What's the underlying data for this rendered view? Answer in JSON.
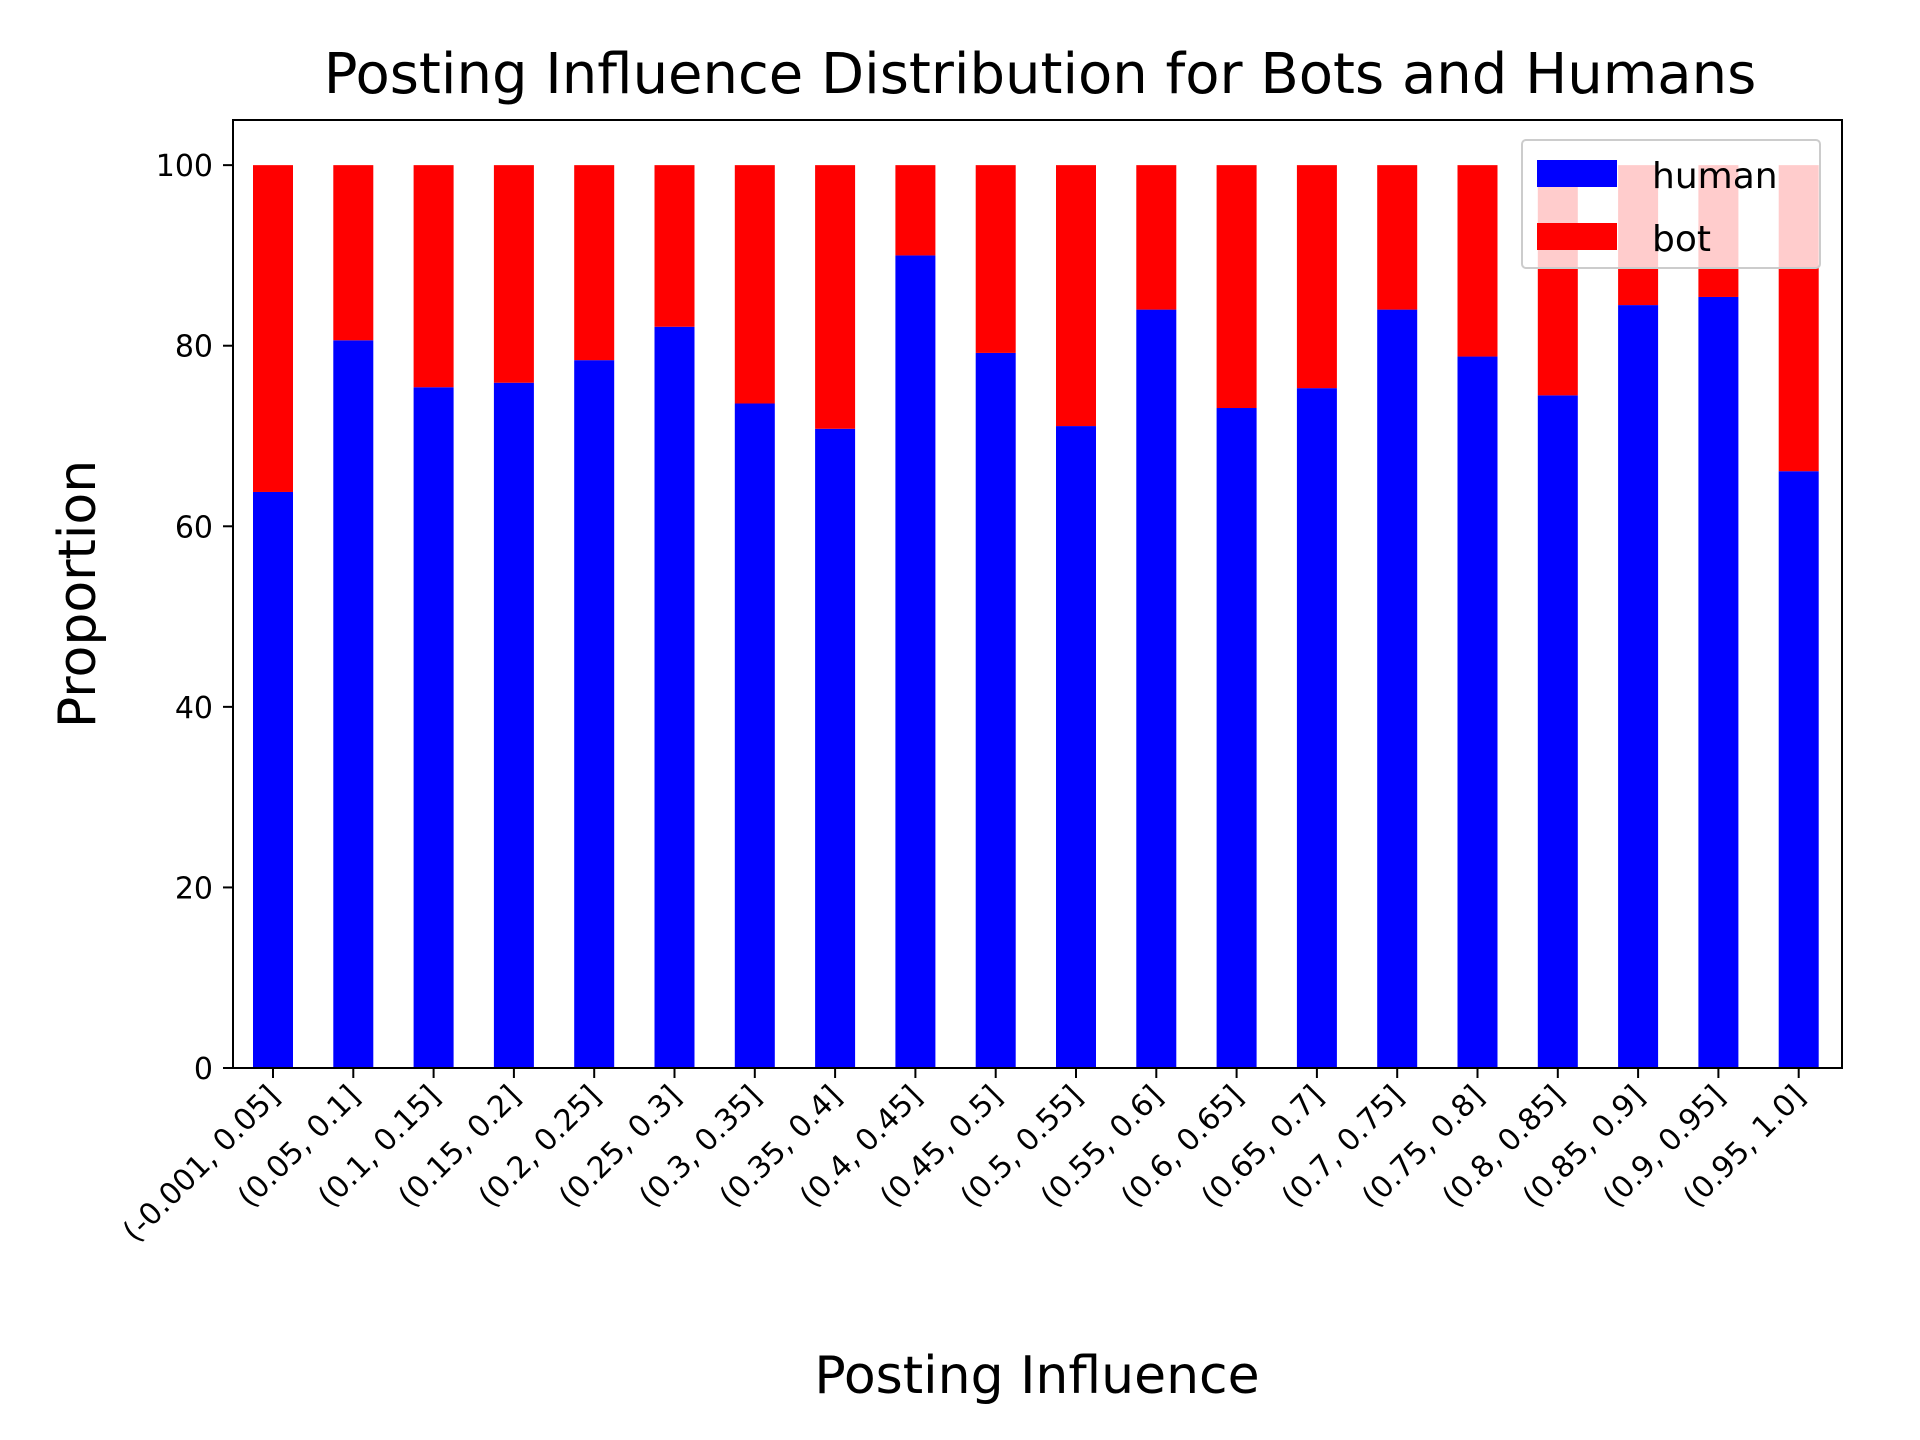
{
  "chart_data": {
    "type": "bar",
    "stacked": true,
    "title": "Posting Influence Distribution for Bots and Humans",
    "xlabel": "Posting Influence",
    "ylabel": "Proportion",
    "ylim": [
      0,
      105
    ],
    "yticks": [
      0,
      20,
      40,
      60,
      80,
      100
    ],
    "categories": [
      "(-0.001, 0.05]",
      "(0.05, 0.1]",
      "(0.1, 0.15]",
      "(0.15, 0.2]",
      "(0.2, 0.25]",
      "(0.25, 0.3]",
      "(0.3, 0.35]",
      "(0.35, 0.4]",
      "(0.4, 0.45]",
      "(0.45, 0.5]",
      "(0.5, 0.55]",
      "(0.55, 0.6]",
      "(0.6, 0.65]",
      "(0.65, 0.7]",
      "(0.7, 0.75]",
      "(0.75, 0.8]",
      "(0.8, 0.85]",
      "(0.85, 0.9]",
      "(0.9, 0.95]",
      "(0.95, 1.0]"
    ],
    "series": [
      {
        "name": "human",
        "color": "#0000ff",
        "values": [
          63.8,
          80.6,
          75.4,
          75.9,
          78.4,
          82.1,
          73.6,
          70.8,
          90.0,
          79.2,
          71.1,
          84.0,
          73.1,
          75.3,
          84.0,
          78.8,
          74.5,
          84.5,
          85.4,
          66.1
        ]
      },
      {
        "name": "bot",
        "color": "#ff0000",
        "values": [
          36.2,
          19.4,
          24.6,
          24.1,
          21.6,
          17.9,
          26.4,
          29.2,
          10.0,
          20.8,
          28.9,
          16.0,
          26.9,
          24.7,
          16.0,
          21.2,
          25.5,
          15.5,
          14.6,
          33.9
        ]
      }
    ],
    "grid": false,
    "legend_position": "top-right"
  }
}
